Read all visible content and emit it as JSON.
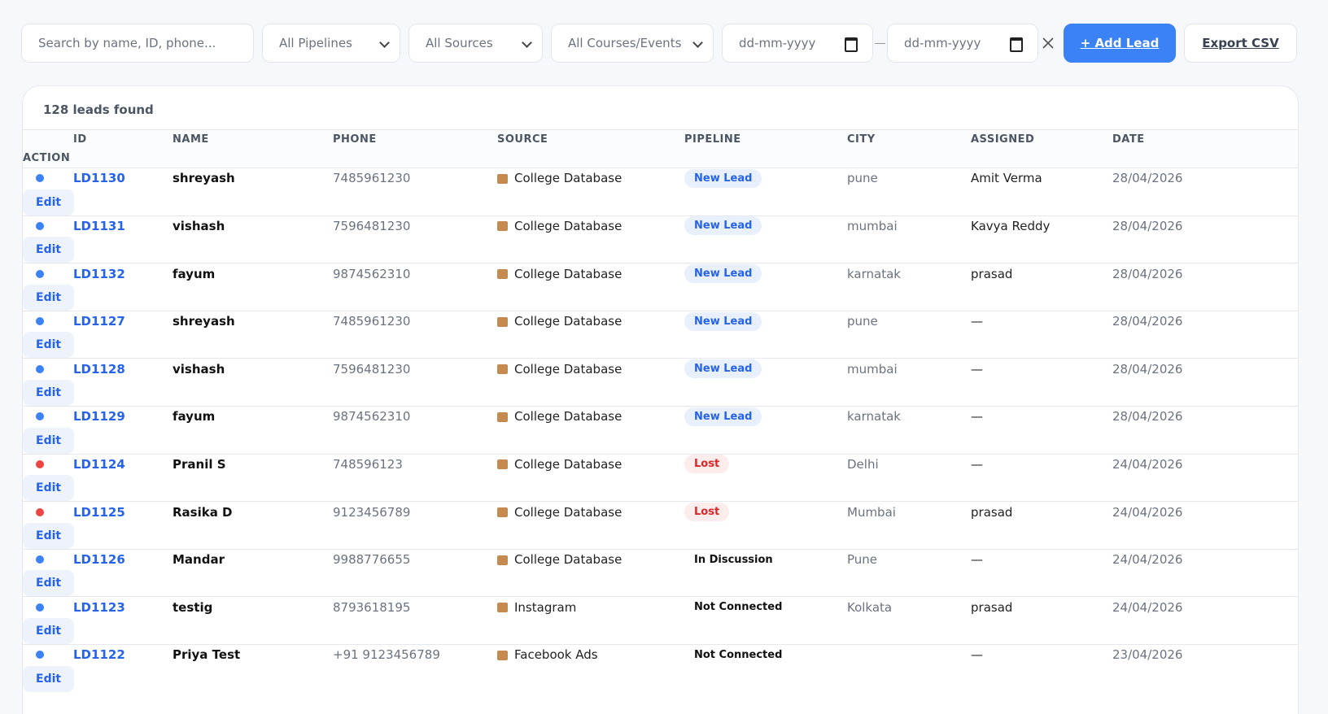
{
  "filters": {
    "search_placeholder": "Search by name, ID, phone...",
    "pipeline": "All Pipelines",
    "source": "All Sources",
    "course": "All Courses/Events",
    "date_from": "dd-mm-yyyy",
    "date_to": "dd-mm-yyyy",
    "add_lead": "+ Add Lead",
    "export": "Export CSV"
  },
  "table": {
    "summary": "128 leads found",
    "columns": [
      "ID",
      "NAME",
      "PHONE",
      "SOURCE",
      "PIPELINE",
      "CITY",
      "ASSIGNED",
      "DATE",
      "ACTION"
    ],
    "rows": [
      {
        "dot": "#3b82f6",
        "id": "LD1130",
        "name": "shreyash",
        "phone": "7485961230",
        "source": "College Database",
        "pipeline": "New Lead",
        "badge": {
          "bg": "#e8f0fe",
          "fg": "#2563eb"
        },
        "city": "pune",
        "assigned": "Amit Verma",
        "date": "28/04/2026",
        "action": "Edit"
      },
      {
        "dot": "#3b82f6",
        "id": "LD1131",
        "name": "vishash",
        "phone": "7596481230",
        "source": "College Database",
        "pipeline": "New Lead",
        "badge": {
          "bg": "#e8f0fe",
          "fg": "#2563eb"
        },
        "city": "mumbai",
        "assigned": "Kavya Reddy",
        "date": "28/04/2026",
        "action": "Edit"
      },
      {
        "dot": "#3b82f6",
        "id": "LD1132",
        "name": "fayum",
        "phone": "9874562310",
        "source": "College Database",
        "pipeline": "New Lead",
        "badge": {
          "bg": "#e8f0fe",
          "fg": "#2563eb"
        },
        "city": "karnatak",
        "assigned": "prasad",
        "date": "28/04/2026",
        "action": "Edit"
      },
      {
        "dot": "#3b82f6",
        "id": "LD1127",
        "name": "shreyash",
        "phone": "7485961230",
        "source": "College Database",
        "pipeline": "New Lead",
        "badge": {
          "bg": "#e8f0fe",
          "fg": "#2563eb"
        },
        "city": "pune",
        "assigned": "—",
        "date": "28/04/2026",
        "action": "Edit"
      },
      {
        "dot": "#3b82f6",
        "id": "LD1128",
        "name": "vishash",
        "phone": "7596481230",
        "source": "College Database",
        "pipeline": "New Lead",
        "badge": {
          "bg": "#e8f0fe",
          "fg": "#2563eb"
        },
        "city": "mumbai",
        "assigned": "—",
        "date": "28/04/2026",
        "action": "Edit"
      },
      {
        "dot": "#3b82f6",
        "id": "LD1129",
        "name": "fayum",
        "phone": "9874562310",
        "source": "College Database",
        "pipeline": "New Lead",
        "badge": {
          "bg": "#e8f0fe",
          "fg": "#2563eb"
        },
        "city": "karnatak",
        "assigned": "—",
        "date": "28/04/2026",
        "action": "Edit"
      },
      {
        "dot": "#ef4444",
        "id": "LD1124",
        "name": "Pranil S",
        "phone": "748596123",
        "source": "College Database",
        "pipeline": "Lost",
        "badge": {
          "bg": "#fdecec",
          "fg": "#dc2626"
        },
        "city": "Delhi",
        "assigned": "—",
        "date": "24/04/2026",
        "action": "Edit"
      },
      {
        "dot": "#ef4444",
        "id": "LD1125",
        "name": "Rasika D",
        "phone": "9123456789",
        "source": "College Database",
        "pipeline": "Lost",
        "badge": {
          "bg": "#fdecec",
          "fg": "#dc2626"
        },
        "city": "Mumbai",
        "assigned": "prasad",
        "date": "24/04/2026",
        "action": "Edit"
      },
      {
        "dot": "#3b82f6",
        "id": "LD1126",
        "name": "Mandar",
        "phone": "9988776655",
        "source": "College Database",
        "pipeline": "In Discussion",
        "badge": null,
        "city": "Pune",
        "assigned": "—",
        "date": "24/04/2026",
        "action": "Edit"
      },
      {
        "dot": "#3b82f6",
        "id": "LD1123",
        "name": "testig",
        "phone": "8793618195",
        "source": "Instagram",
        "pipeline": "Not Connected",
        "badge": null,
        "city": "Kolkata",
        "assigned": "prasad",
        "date": "24/04/2026",
        "action": "Edit"
      },
      {
        "dot": "#3b82f6",
        "id": "LD1122",
        "name": "Priya Test",
        "phone": "+91 9123456789",
        "source": "Facebook Ads",
        "pipeline": "Not Connected",
        "badge": null,
        "city": null,
        "assigned": "—",
        "date": "23/04/2026",
        "action": "Edit"
      }
    ]
  }
}
